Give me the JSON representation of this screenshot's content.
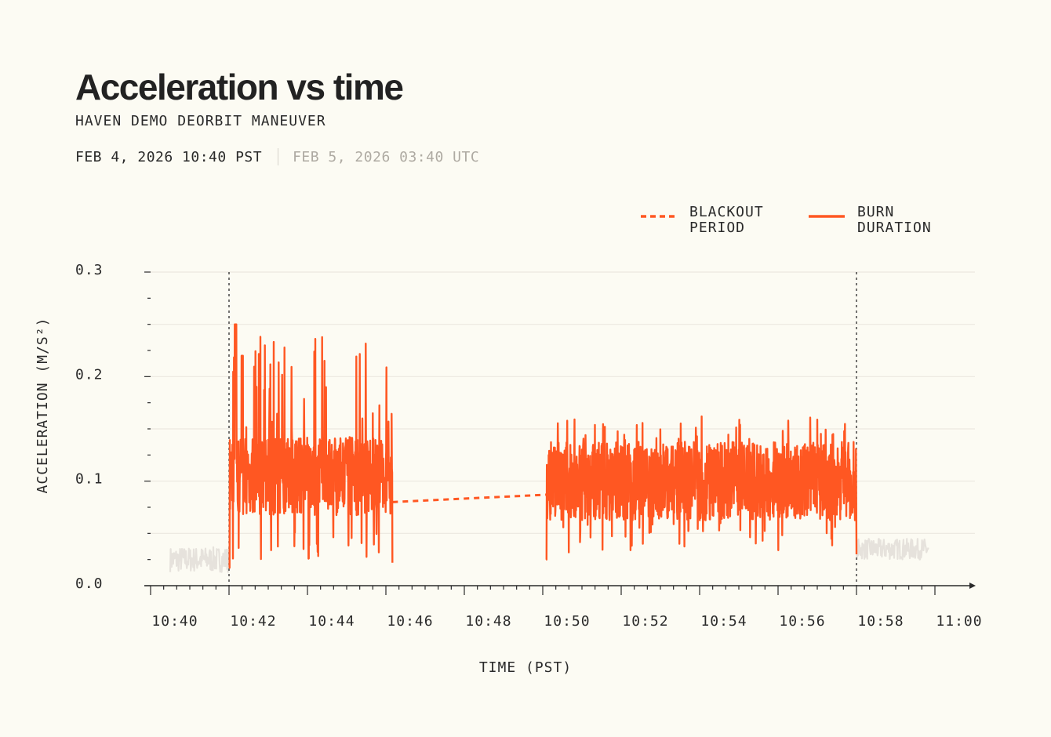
{
  "header": {
    "title": "Acceleration vs time",
    "subtitle": "HAVEN DEMO DEORBIT MANEUVER",
    "date_local": "FEB 4, 2026 10:40 PST",
    "date_utc": "FEB 5, 2026 03:40 UTC"
  },
  "colors": {
    "burn": "#ff5722",
    "idle": "#e6e2dc",
    "grid": "#ebe8e0",
    "axis": "#2a2a2a",
    "text": "#2a2a2a"
  },
  "chart_data": {
    "type": "line",
    "title": "Acceleration vs time",
    "xlabel": "TIME (PST)",
    "ylabel": "ACCELERATION (M/S²)",
    "xlim": [
      "10:40",
      "11:00"
    ],
    "ylim": [
      0.0,
      0.3
    ],
    "x_tick_labels": [
      "10:40",
      "10:42",
      "10:44",
      "10:46",
      "10:48",
      "10:50",
      "10:52",
      "10:54",
      "10:56",
      "10:58",
      "11:00"
    ],
    "y_tick_labels": [
      "0.0",
      "0.1",
      "0.2",
      "0.3"
    ],
    "y_ticks": [
      0.0,
      0.1,
      0.2,
      0.3
    ],
    "grid": true,
    "legend": {
      "placement": "top-right",
      "entries": [
        {
          "label_line1": "BLACKOUT",
          "label_line2": "PERIOD",
          "style": "dashed"
        },
        {
          "label_line1": "BURN",
          "label_line2": "DURATION",
          "style": "solid"
        }
      ]
    },
    "burn_markers": [
      "10:42",
      "10:58"
    ],
    "series": [
      {
        "role": "idle",
        "x": [
          "10:40:30",
          "10:42"
        ],
        "mean": 0.025,
        "amplitude": 0.012
      },
      {
        "role": "burn",
        "x_range": [
          "10:42",
          "10:46:10"
        ],
        "peak": {
          "x": "10:42:10",
          "y": 0.25
        },
        "second_peak": {
          "x": "10:42:20",
          "y": 0.22
        },
        "mean": 0.105,
        "min": 0.012,
        "max": 0.25
      },
      {
        "role": "blackout",
        "x": [
          "10:46:10",
          "10:50:05"
        ],
        "y": [
          0.08,
          0.087
        ]
      },
      {
        "role": "burn",
        "x_range": [
          "10:50:05",
          "10:58"
        ],
        "mean": 0.1,
        "min": 0.02,
        "max": 0.172
      },
      {
        "role": "idle",
        "x": [
          "10:58",
          "10:59:50"
        ],
        "mean": 0.035,
        "amplitude": 0.01
      }
    ]
  }
}
